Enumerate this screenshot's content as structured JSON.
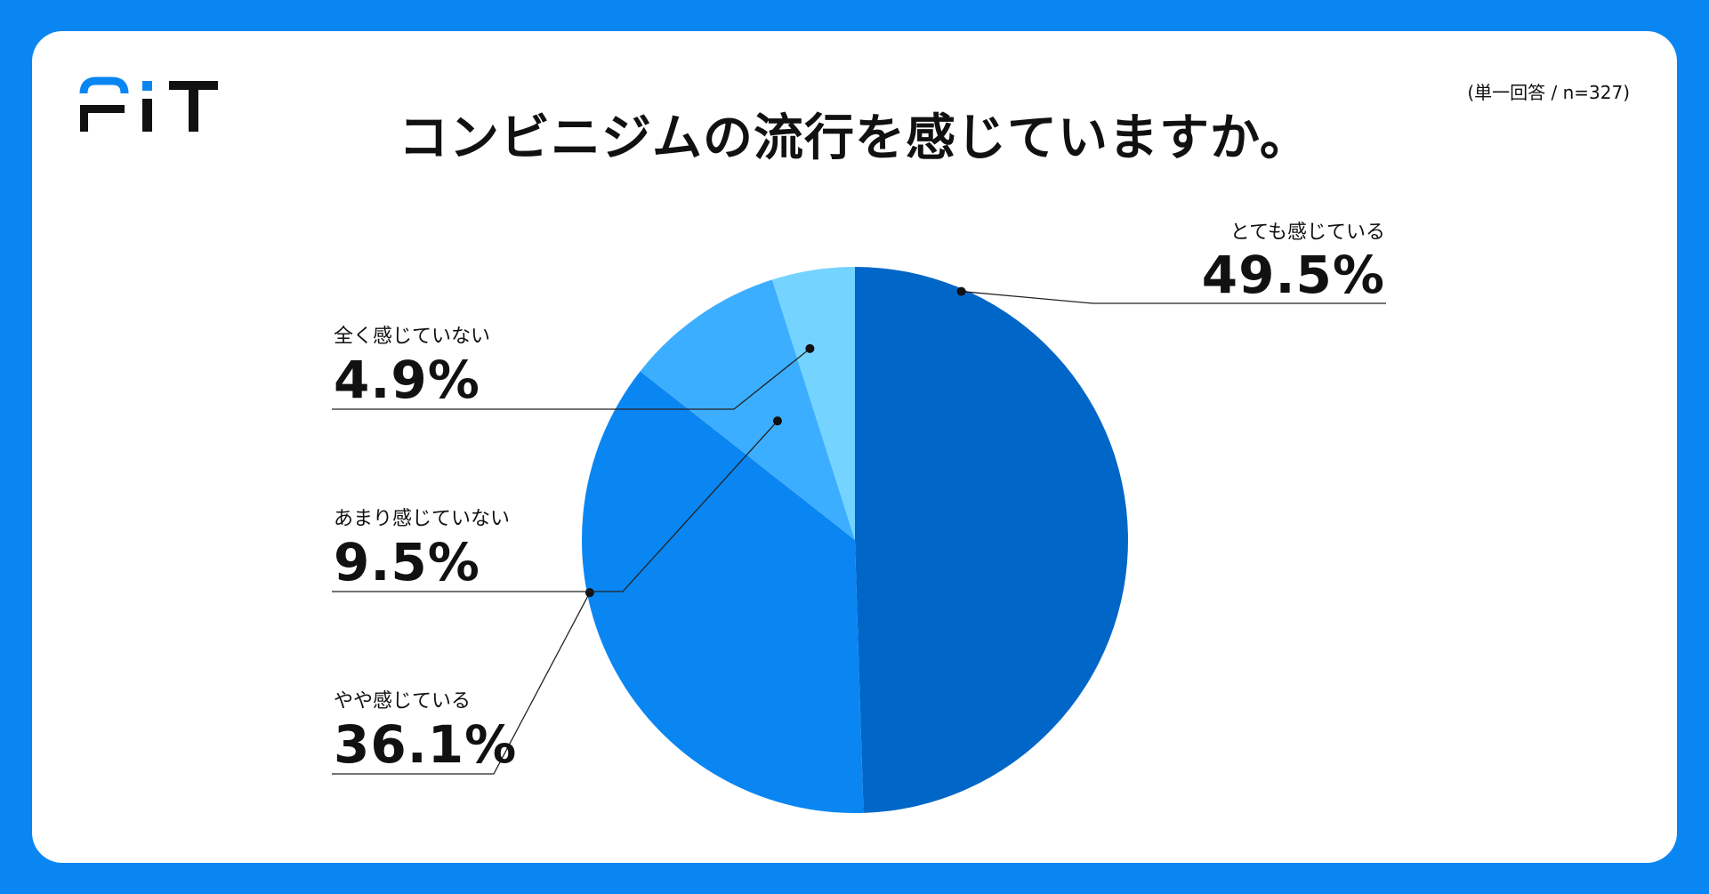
{
  "brand": {
    "logo_text": "FIT",
    "accent": "#0a86f2"
  },
  "header": {
    "title": "コンビニジムの流行を感じていますか。",
    "sample_note": "(単一回答 / n=327)"
  },
  "chart_data": {
    "type": "pie",
    "title": "コンビニジムの流行を感じていますか。",
    "start_angle_deg": 0,
    "direction": "clockwise",
    "slices": [
      {
        "label": "とても感じている",
        "value": 49.5,
        "value_label": "49.5%",
        "color": "#0066c7"
      },
      {
        "label": "やや感じている",
        "value": 36.1,
        "value_label": "36.1%",
        "color": "#0a86f2"
      },
      {
        "label": "あまり感じていない",
        "value": 9.5,
        "value_label": "9.5%",
        "color": "#3caeff"
      },
      {
        "label": "全く感じていない",
        "value": 4.9,
        "value_label": "4.9%",
        "color": "#75d3ff"
      }
    ]
  }
}
